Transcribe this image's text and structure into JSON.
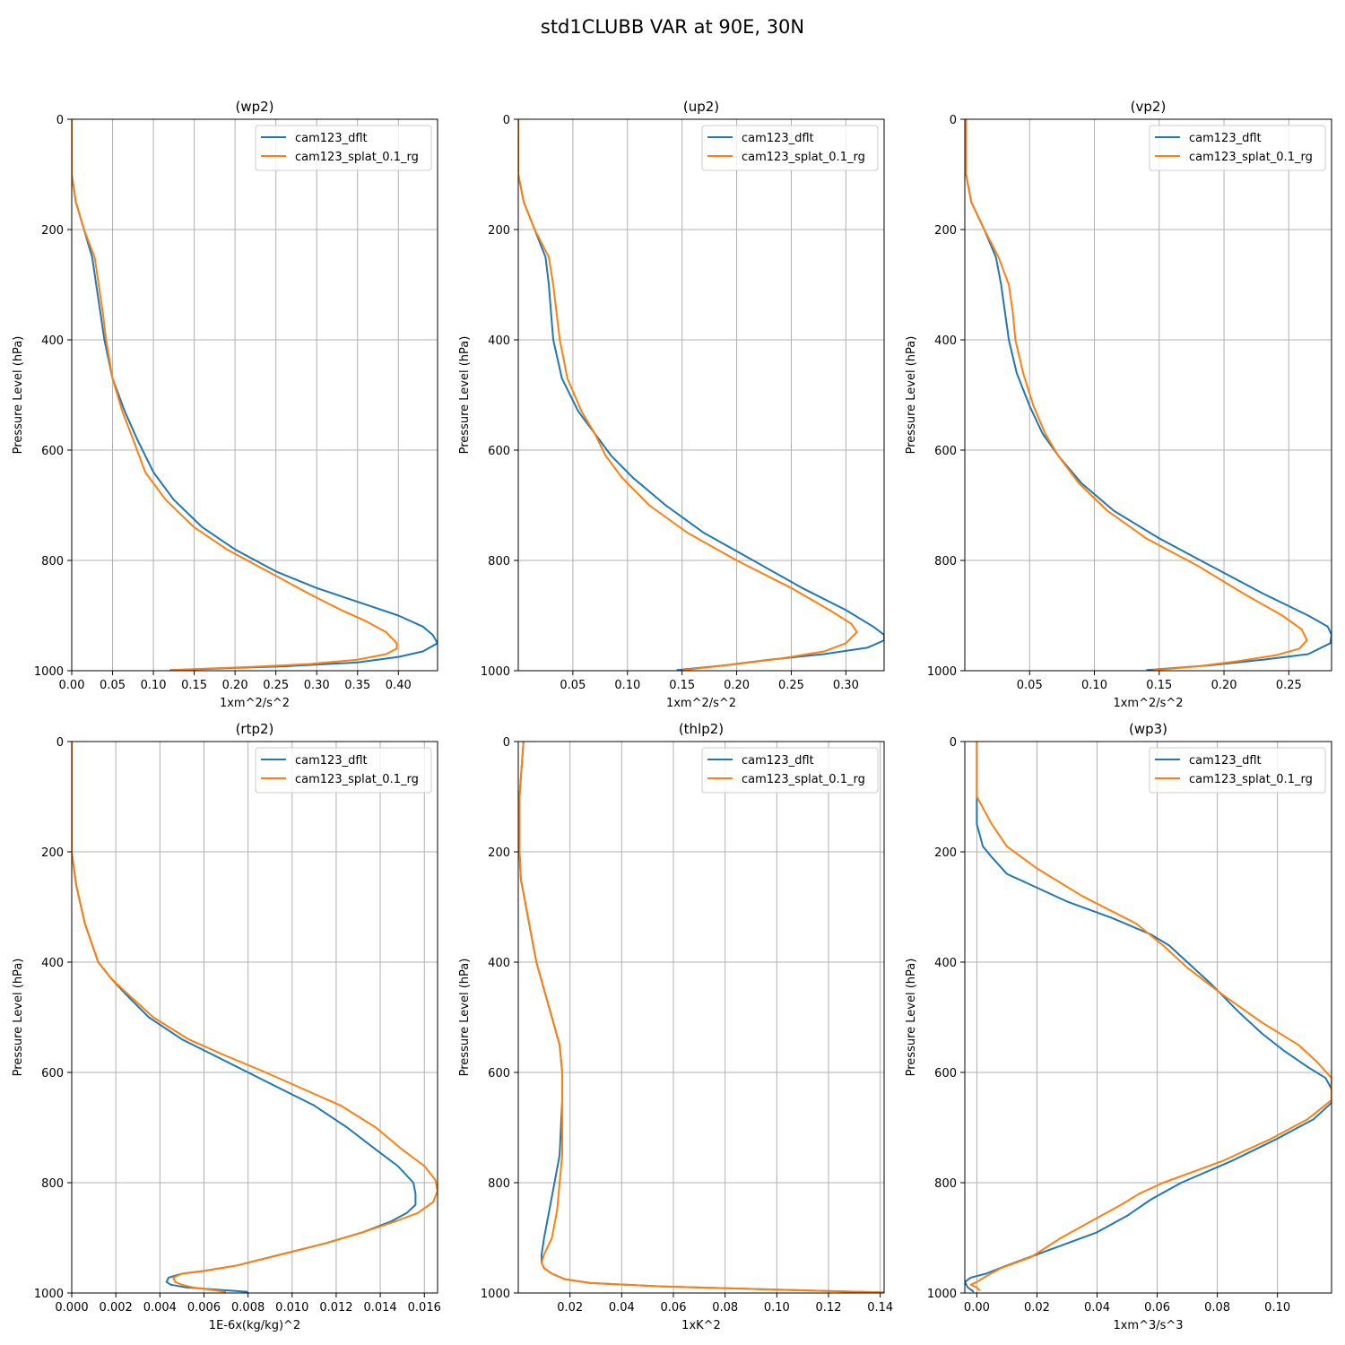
{
  "figure": {
    "title": "std1CLUBB VAR at 90E, 30N"
  },
  "colors": {
    "dflt": "#1f77b4",
    "splat": "#ff7f0e",
    "grid": "#b0b0b0"
  },
  "chart_data": [
    {
      "type": "line",
      "title": "(wp2)",
      "xlabel": "1xm^2/s^2",
      "ylabel": "Pressure Level (hPa)",
      "xlim": [
        0,
        0.448
      ],
      "ylim": [
        1000,
        0
      ],
      "xticks": [
        0.0,
        0.05,
        0.1,
        0.15,
        0.2,
        0.25,
        0.3,
        0.35,
        0.4
      ],
      "xtick_labels": [
        "0.00",
        "0.05",
        "0.10",
        "0.15",
        "0.20",
        "0.25",
        "0.30",
        "0.35",
        "0.40"
      ],
      "yticks": [
        0,
        200,
        400,
        600,
        800,
        1000
      ],
      "ytick_labels": [
        "0",
        "200",
        "400",
        "600",
        "800",
        "1000"
      ],
      "grid": true,
      "legend_position": "top-right",
      "series": [
        {
          "name": "cam123_dflt",
          "color": "#1f77b4",
          "x": [
            0,
            0,
            0.005,
            0.015,
            0.025,
            0.03,
            0.035,
            0.04,
            0.05,
            0.065,
            0.08,
            0.1,
            0.125,
            0.16,
            0.2,
            0.25,
            0.3,
            0.36,
            0.4,
            0.43,
            0.442,
            0.448,
            0.43,
            0.4,
            0.35,
            0.26,
            0.18,
            0.12
          ],
          "y": [
            0,
            100,
            150,
            200,
            250,
            300,
            350,
            400,
            470,
            530,
            580,
            640,
            690,
            740,
            780,
            820,
            850,
            880,
            900,
            920,
            935,
            950,
            965,
            975,
            985,
            992,
            996,
            999
          ]
        },
        {
          "name": "cam123_splat_0.1_rg",
          "color": "#ff7f0e",
          "x": [
            0,
            0,
            0.005,
            0.015,
            0.028,
            0.033,
            0.038,
            0.042,
            0.05,
            0.062,
            0.075,
            0.09,
            0.115,
            0.15,
            0.19,
            0.24,
            0.29,
            0.33,
            0.36,
            0.385,
            0.398,
            0.398,
            0.385,
            0.35,
            0.29,
            0.22,
            0.17,
            0.12
          ],
          "y": [
            0,
            100,
            150,
            200,
            250,
            300,
            350,
            400,
            470,
            530,
            580,
            640,
            690,
            740,
            780,
            820,
            860,
            890,
            910,
            930,
            950,
            960,
            970,
            980,
            988,
            993,
            996,
            999
          ]
        }
      ]
    },
    {
      "type": "line",
      "title": "(up2)",
      "xlabel": "1xm^2/s^2",
      "ylabel": "Pressure Level (hPa)",
      "xlim": [
        0,
        0.335
      ],
      "ylim": [
        1000,
        0
      ],
      "xticks": [
        0.05,
        0.1,
        0.15,
        0.2,
        0.25,
        0.3
      ],
      "xtick_labels": [
        "0.05",
        "0.10",
        "0.15",
        "0.20",
        "0.25",
        "0.30"
      ],
      "yticks": [
        0,
        200,
        400,
        600,
        800,
        1000
      ],
      "ytick_labels": [
        "0",
        "200",
        "400",
        "600",
        "800",
        "1000"
      ],
      "grid": true,
      "legend_position": "top-right",
      "series": [
        {
          "name": "cam123_dflt",
          "color": "#1f77b4",
          "x": [
            0,
            0,
            0.005,
            0.015,
            0.025,
            0.028,
            0.03,
            0.032,
            0.04,
            0.055,
            0.07,
            0.085,
            0.105,
            0.135,
            0.17,
            0.215,
            0.26,
            0.3,
            0.325,
            0.335,
            0.335,
            0.32,
            0.28,
            0.23,
            0.19,
            0.145
          ],
          "y": [
            0,
            100,
            150,
            200,
            250,
            300,
            350,
            400,
            470,
            530,
            570,
            610,
            650,
            700,
            750,
            800,
            850,
            890,
            920,
            935,
            945,
            958,
            970,
            980,
            990,
            999
          ]
        },
        {
          "name": "cam123_splat_0.1_rg",
          "color": "#ff7f0e",
          "x": [
            0,
            0,
            0.005,
            0.015,
            0.028,
            0.032,
            0.035,
            0.038,
            0.045,
            0.058,
            0.07,
            0.08,
            0.095,
            0.12,
            0.155,
            0.2,
            0.25,
            0.285,
            0.305,
            0.31,
            0.3,
            0.28,
            0.24,
            0.2,
            0.15
          ],
          "y": [
            0,
            100,
            150,
            200,
            250,
            300,
            350,
            400,
            470,
            530,
            570,
            610,
            650,
            700,
            750,
            800,
            850,
            890,
            915,
            930,
            950,
            965,
            978,
            988,
            999
          ]
        }
      ]
    },
    {
      "type": "line",
      "title": "(vp2)",
      "xlabel": "1xm^2/s^2",
      "ylabel": "Pressure Level (hPa)",
      "xlim": [
        0,
        0.283
      ],
      "ylim": [
        1000,
        0
      ],
      "xticks": [
        0.05,
        0.1,
        0.15,
        0.2,
        0.25
      ],
      "xtick_labels": [
        "0.05",
        "0.10",
        "0.15",
        "0.20",
        "0.25"
      ],
      "yticks": [
        0,
        200,
        400,
        600,
        800,
        1000
      ],
      "ytick_labels": [
        "0",
        "200",
        "400",
        "600",
        "800",
        "1000"
      ],
      "grid": true,
      "legend_position": "top-right",
      "series": [
        {
          "name": "cam123_dflt",
          "color": "#1f77b4",
          "x": [
            0.001,
            0.001,
            0.005,
            0.015,
            0.024,
            0.028,
            0.031,
            0.034,
            0.04,
            0.05,
            0.06,
            0.072,
            0.09,
            0.115,
            0.15,
            0.19,
            0.23,
            0.265,
            0.28,
            0.283,
            0.282,
            0.265,
            0.23,
            0.19,
            0.14
          ],
          "y": [
            0,
            100,
            150,
            200,
            250,
            300,
            350,
            400,
            460,
            520,
            570,
            610,
            660,
            710,
            760,
            810,
            860,
            900,
            920,
            935,
            950,
            970,
            980,
            990,
            999
          ]
        },
        {
          "name": "cam123_splat_0.1_rg",
          "color": "#ff7f0e",
          "x": [
            0.001,
            0.001,
            0.005,
            0.015,
            0.026,
            0.034,
            0.037,
            0.039,
            0.045,
            0.053,
            0.062,
            0.072,
            0.088,
            0.11,
            0.14,
            0.18,
            0.215,
            0.245,
            0.26,
            0.264,
            0.258,
            0.24,
            0.21,
            0.18,
            0.145
          ],
          "y": [
            0,
            100,
            150,
            200,
            250,
            300,
            350,
            400,
            460,
            520,
            570,
            610,
            660,
            710,
            760,
            810,
            860,
            900,
            925,
            945,
            960,
            972,
            983,
            992,
            999
          ]
        }
      ]
    },
    {
      "type": "line",
      "title": "(rtp2)",
      "xlabel": "1E-6x(kg/kg)^2",
      "ylabel": "Pressure Level (hPa)",
      "xlim": [
        0,
        0.0166
      ],
      "ylim": [
        1000,
        0
      ],
      "xticks": [
        0.0,
        0.002,
        0.004,
        0.006,
        0.008,
        0.01,
        0.012,
        0.014,
        0.016
      ],
      "xtick_labels": [
        "0.000",
        "0.002",
        "0.004",
        "0.006",
        "0.008",
        "0.010",
        "0.012",
        "0.014",
        "0.016"
      ],
      "yticks": [
        0,
        200,
        400,
        600,
        800,
        1000
      ],
      "ytick_labels": [
        "0",
        "200",
        "400",
        "600",
        "800",
        "1000"
      ],
      "grid": true,
      "legend_position": "top-right",
      "series": [
        {
          "name": "cam123_dflt",
          "color": "#1f77b4",
          "x": [
            0,
            0,
            0.0002,
            0.0006,
            0.0012,
            0.0018,
            0.0025,
            0.0035,
            0.005,
            0.0065,
            0.008,
            0.0095,
            0.011,
            0.0125,
            0.0138,
            0.0148,
            0.0155,
            0.0156,
            0.0156,
            0.0152,
            0.0145,
            0.0132,
            0.0115,
            0.0095,
            0.0075,
            0.006,
            0.005,
            0.0044,
            0.0043,
            0.0045,
            0.0052,
            0.008
          ],
          "y": [
            0,
            200,
            260,
            330,
            400,
            430,
            460,
            500,
            540,
            570,
            600,
            630,
            660,
            700,
            740,
            770,
            800,
            820,
            840,
            855,
            870,
            890,
            910,
            930,
            950,
            960,
            965,
            972,
            980,
            985,
            990,
            998
          ]
        },
        {
          "name": "cam123_splat_0.1_rg",
          "color": "#ff7f0e",
          "x": [
            0,
            0,
            0.0002,
            0.0006,
            0.0012,
            0.0018,
            0.0026,
            0.0037,
            0.0053,
            0.007,
            0.0088,
            0.0105,
            0.0122,
            0.0138,
            0.015,
            0.016,
            0.0165,
            0.0166,
            0.0164,
            0.0157,
            0.0147,
            0.0132,
            0.0115,
            0.0095,
            0.0075,
            0.006,
            0.005,
            0.0046,
            0.0047,
            0.005,
            0.0055,
            0.007
          ],
          "y": [
            0,
            200,
            260,
            330,
            400,
            430,
            460,
            500,
            540,
            570,
            600,
            630,
            660,
            700,
            740,
            770,
            795,
            815,
            835,
            855,
            870,
            890,
            910,
            930,
            950,
            960,
            965,
            972,
            980,
            985,
            990,
            998
          ]
        }
      ]
    },
    {
      "type": "line",
      "title": "(thlp2)",
      "xlabel": "1xK^2",
      "ylabel": "Pressure Level (hPa)",
      "xlim": [
        0,
        0.1415
      ],
      "ylim": [
        1000,
        0
      ],
      "xticks": [
        0.02,
        0.04,
        0.06,
        0.08,
        0.1,
        0.12,
        0.14
      ],
      "xtick_labels": [
        "0.02",
        "0.04",
        "0.06",
        "0.08",
        "0.10",
        "0.12",
        "0.14"
      ],
      "yticks": [
        0,
        200,
        400,
        600,
        800,
        1000
      ],
      "ytick_labels": [
        "0",
        "200",
        "400",
        "600",
        "800",
        "1000"
      ],
      "grid": true,
      "legend_position": "top-right",
      "series": [
        {
          "name": "cam123_dflt",
          "color": "#1f77b4",
          "x": [
            0.002,
            0.0005,
            0.0005,
            0.001,
            0.003,
            0.005,
            0.007,
            0.01,
            0.013,
            0.016,
            0.017,
            0.017,
            0.016,
            0.014,
            0.012,
            0.01,
            0.009,
            0.009,
            0.01,
            0.013,
            0.018,
            0.028,
            0.055,
            0.1,
            0.1415
          ],
          "y": [
            0,
            100,
            200,
            250,
            300,
            350,
            400,
            450,
            500,
            550,
            600,
            650,
            750,
            800,
            850,
            900,
            930,
            945,
            955,
            965,
            975,
            982,
            988,
            994,
            999
          ]
        },
        {
          "name": "cam123_splat_0.1_rg",
          "color": "#ff7f0e",
          "x": [
            0.002,
            0.0005,
            0.0005,
            0.001,
            0.003,
            0.005,
            0.007,
            0.01,
            0.013,
            0.016,
            0.017,
            0.017,
            0.017,
            0.016,
            0.015,
            0.013,
            0.01,
            0.009,
            0.01,
            0.013,
            0.018,
            0.028,
            0.055,
            0.1,
            0.1415
          ],
          "y": [
            0,
            100,
            200,
            250,
            300,
            350,
            400,
            450,
            500,
            550,
            600,
            650,
            750,
            800,
            850,
            900,
            930,
            945,
            955,
            965,
            975,
            982,
            988,
            994,
            999
          ]
        }
      ]
    },
    {
      "type": "line",
      "title": "(wp3)",
      "xlabel": "1xm^3/s^3",
      "ylabel": "Pressure Level (hPa)",
      "xlim": [
        -0.004,
        0.118
      ],
      "ylim": [
        1000,
        0
      ],
      "xticks": [
        0.0,
        0.02,
        0.04,
        0.06,
        0.08,
        0.1
      ],
      "xtick_labels": [
        "0.00",
        "0.02",
        "0.04",
        "0.06",
        "0.08",
        "0.10"
      ],
      "yticks": [
        0,
        200,
        400,
        600,
        800,
        1000
      ],
      "ytick_labels": [
        "0",
        "200",
        "400",
        "600",
        "800",
        "1000"
      ],
      "grid": true,
      "legend_position": "top-right",
      "series": [
        {
          "name": "cam123_dflt",
          "color": "#1f77b4",
          "x": [
            0,
            0,
            0,
            0.001,
            0.002,
            0.005,
            0.01,
            0.02,
            0.03,
            0.045,
            0.058,
            0.064,
            0.07,
            0.078,
            0.087,
            0.095,
            0.102,
            0.11,
            0.116,
            0.118,
            0.118,
            0.112,
            0.1,
            0.085,
            0.068,
            0.058,
            0.05,
            0.04,
            0.03,
            0.02,
            0.01,
            0.003,
            -0.002,
            -0.004,
            -0.003,
            -0.001
          ],
          "y": [
            0,
            100,
            150,
            170,
            190,
            210,
            240,
            265,
            290,
            320,
            350,
            370,
            400,
            440,
            490,
            530,
            560,
            590,
            610,
            630,
            655,
            685,
            720,
            760,
            800,
            830,
            860,
            890,
            910,
            930,
            950,
            965,
            972,
            980,
            990,
            998
          ]
        },
        {
          "name": "cam123_splat_0.1_rg",
          "color": "#ff7f0e",
          "x": [
            0,
            0,
            0.002,
            0.005,
            0.01,
            0.02,
            0.035,
            0.053,
            0.062,
            0.07,
            0.082,
            0.095,
            0.107,
            0.113,
            0.118,
            0.118,
            0.11,
            0.098,
            0.082,
            0.062,
            0.054,
            0.048,
            0.038,
            0.028,
            0.018,
            0.008,
            0.003,
            0.0,
            -0.002,
            0.0,
            0.001
          ],
          "y": [
            0,
            100,
            120,
            150,
            190,
            230,
            280,
            330,
            370,
            410,
            460,
            510,
            550,
            580,
            610,
            650,
            685,
            720,
            760,
            800,
            820,
            840,
            870,
            900,
            935,
            955,
            970,
            980,
            985,
            990,
            996
          ]
        }
      ]
    }
  ]
}
